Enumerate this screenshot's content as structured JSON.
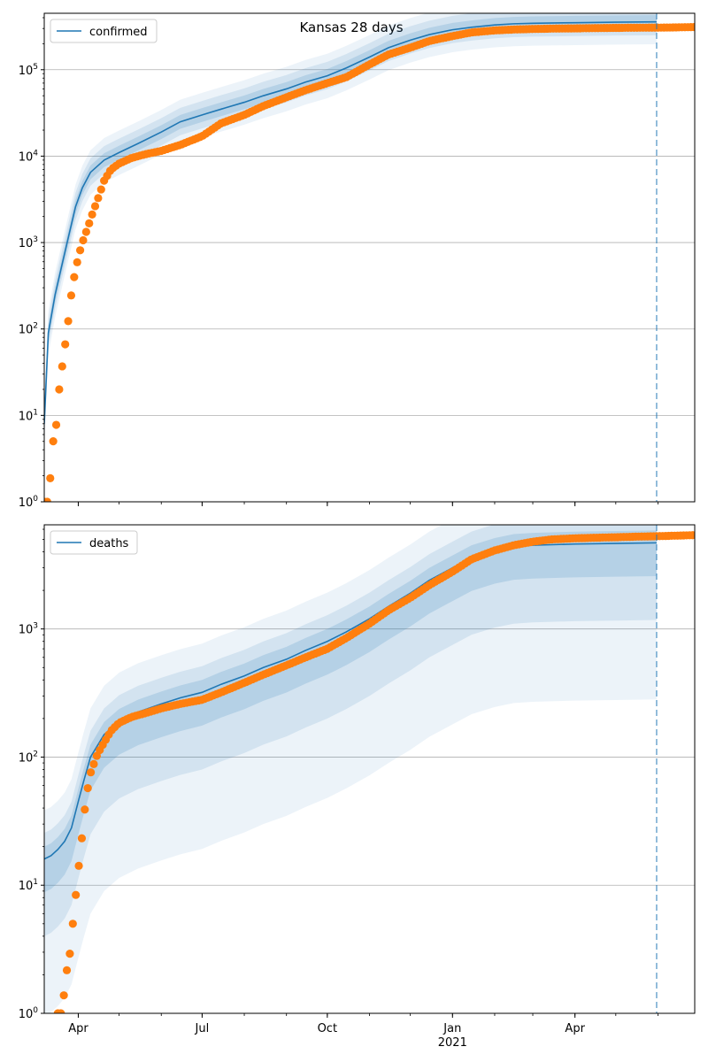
{
  "figure": {
    "title": "Kansas 28 days"
  },
  "chart_data": [
    {
      "type": "line",
      "panel": "confirmed",
      "yscale": "log",
      "ylim": [
        1,
        450000
      ],
      "xlim": [
        "2020-03-07",
        "2021-06-28"
      ],
      "grid": "y-major",
      "legend": {
        "position": "top-left",
        "entries": [
          "confirmed"
        ]
      },
      "x_ticks": [
        {
          "date": "2020-04-01",
          "label": "Apr"
        },
        {
          "date": "2020-07-01",
          "label": "Jul"
        },
        {
          "date": "2020-10-01",
          "label": "Oct"
        },
        {
          "date": "2021-01-01",
          "label": "Jan",
          "sublabel": "2021"
        },
        {
          "date": "2021-04-01",
          "label": "Apr"
        }
      ],
      "y_ticks": [
        {
          "value": 1,
          "label": "10^0"
        },
        {
          "value": 10,
          "label": "10^1"
        },
        {
          "value": 100,
          "label": "10^2"
        },
        {
          "value": 1000,
          "label": "10^3"
        },
        {
          "value": 10000,
          "label": "10^4"
        },
        {
          "value": 100000,
          "label": "10^5"
        }
      ],
      "forecast_start": "2021-05-31",
      "series": [
        {
          "name": "confirmed",
          "kind": "model",
          "color": "#1f77b4",
          "x": [
            "2020-03-07",
            "2020-03-10",
            "2020-03-15",
            "2020-03-20",
            "2020-03-25",
            "2020-03-30",
            "2020-04-04",
            "2020-04-10",
            "2020-04-20",
            "2020-05-01",
            "2020-05-15",
            "2020-06-01",
            "2020-06-15",
            "2020-07-01",
            "2020-07-15",
            "2020-08-01",
            "2020-08-15",
            "2020-09-01",
            "2020-09-15",
            "2020-10-01",
            "2020-10-15",
            "2020-11-01",
            "2020-11-15",
            "2020-12-01",
            "2020-12-15",
            "2021-01-01",
            "2021-01-15",
            "2021-02-01",
            "2021-02-15",
            "2021-03-01",
            "2021-04-01",
            "2021-05-01",
            "2021-05-31"
          ],
          "y": [
            8,
            90,
            250,
            550,
            1200,
            2600,
            4300,
            6500,
            9000,
            11000,
            14000,
            19000,
            25000,
            30000,
            35000,
            42000,
            50000,
            60000,
            72000,
            85000,
            105000,
            140000,
            180000,
            220000,
            255000,
            290000,
            310000,
            330000,
            340000,
            345000,
            350000,
            355000,
            358000
          ]
        },
        {
          "name": "confirmed observed",
          "kind": "points",
          "color": "#ff7f0e",
          "x": [
            "2020-03-07",
            "2020-03-10",
            "2020-03-14",
            "2020-03-16",
            "2020-03-18",
            "2020-03-20",
            "2020-03-22",
            "2020-03-24",
            "2020-03-26",
            "2020-03-28",
            "2020-03-30",
            "2020-04-01",
            "2020-04-04",
            "2020-04-08",
            "2020-04-12",
            "2020-04-16",
            "2020-04-20",
            "2020-04-25",
            "2020-05-01",
            "2020-05-10",
            "2020-05-20",
            "2020-06-01",
            "2020-06-15",
            "2020-07-01",
            "2020-07-15",
            "2020-08-01",
            "2020-08-15",
            "2020-09-01",
            "2020-09-15",
            "2020-10-01",
            "2020-10-15",
            "2020-11-01",
            "2020-11-15",
            "2020-12-01",
            "2020-12-15",
            "2021-01-01",
            "2021-01-15",
            "2021-02-01",
            "2021-02-15",
            "2021-03-01",
            "2021-03-15",
            "2021-04-01",
            "2021-04-15",
            "2021-05-01",
            "2021-05-15",
            "2021-06-01",
            "2021-06-15",
            "2021-06-28"
          ],
          "y": [
            1,
            1,
            6,
            8,
            20,
            35,
            60,
            100,
            200,
            330,
            480,
            680,
            1000,
            1500,
            2300,
            3400,
            5200,
            7000,
            8200,
            9500,
            10500,
            11500,
            13500,
            17000,
            24000,
            30000,
            38000,
            48000,
            58000,
            70000,
            82000,
            115000,
            150000,
            180000,
            215000,
            245000,
            270000,
            285000,
            292000,
            296000,
            299000,
            301000,
            303000,
            305000,
            306000,
            307000,
            309000,
            312000
          ]
        }
      ]
    },
    {
      "type": "line",
      "panel": "deaths",
      "yscale": "log",
      "ylim": [
        1,
        6500
      ],
      "xlim": [
        "2020-03-07",
        "2021-06-28"
      ],
      "grid": "y-major",
      "legend": {
        "position": "top-left",
        "entries": [
          "deaths"
        ]
      },
      "x_ticks": [
        {
          "date": "2020-04-01",
          "label": "Apr"
        },
        {
          "date": "2020-07-01",
          "label": "Jul"
        },
        {
          "date": "2020-10-01",
          "label": "Oct"
        },
        {
          "date": "2021-01-01",
          "label": "Jan",
          "sublabel": "2021"
        },
        {
          "date": "2021-04-01",
          "label": "Apr"
        }
      ],
      "y_ticks": [
        {
          "value": 1,
          "label": "10^0"
        },
        {
          "value": 10,
          "label": "10^1"
        },
        {
          "value": 100,
          "label": "10^2"
        },
        {
          "value": 1000,
          "label": "10^3"
        }
      ],
      "forecast_start": "2021-05-31",
      "series": [
        {
          "name": "deaths",
          "kind": "model",
          "color": "#1f77b4",
          "x": [
            "2020-03-07",
            "2020-03-12",
            "2020-03-17",
            "2020-03-22",
            "2020-03-27",
            "2020-04-01",
            "2020-04-05",
            "2020-04-10",
            "2020-04-20",
            "2020-05-01",
            "2020-05-15",
            "2020-06-01",
            "2020-06-15",
            "2020-07-01",
            "2020-07-15",
            "2020-08-01",
            "2020-08-15",
            "2020-09-01",
            "2020-09-15",
            "2020-10-01",
            "2020-10-15",
            "2020-11-01",
            "2020-11-15",
            "2020-12-01",
            "2020-12-15",
            "2021-01-01",
            "2021-01-15",
            "2021-02-01",
            "2021-02-15",
            "2021-03-01",
            "2021-04-01",
            "2021-05-01",
            "2021-05-31"
          ],
          "y": [
            16,
            17,
            19,
            22,
            28,
            45,
            65,
            100,
            150,
            190,
            225,
            260,
            290,
            320,
            370,
            430,
            500,
            580,
            680,
            800,
            950,
            1200,
            1500,
            1900,
            2400,
            3000,
            3600,
            4100,
            4400,
            4500,
            4600,
            4650,
            4700
          ]
        },
        {
          "name": "deaths observed",
          "kind": "points",
          "color": "#ff7f0e",
          "x": [
            "2020-03-17",
            "2020-03-20",
            "2020-03-23",
            "2020-03-26",
            "2020-03-28",
            "2020-03-30",
            "2020-04-01",
            "2020-04-03",
            "2020-04-05",
            "2020-04-07",
            "2020-04-10",
            "2020-04-15",
            "2020-04-20",
            "2020-04-25",
            "2020-05-01",
            "2020-05-10",
            "2020-05-20",
            "2020-06-01",
            "2020-06-15",
            "2020-07-01",
            "2020-07-15",
            "2020-08-01",
            "2020-08-15",
            "2020-09-01",
            "2020-09-15",
            "2020-10-01",
            "2020-10-15",
            "2020-11-01",
            "2020-11-15",
            "2020-12-01",
            "2020-12-15",
            "2021-01-01",
            "2021-01-15",
            "2021-02-01",
            "2021-02-15",
            "2021-03-01",
            "2021-03-15",
            "2021-04-01",
            "2021-04-15",
            "2021-05-01",
            "2021-05-15",
            "2021-06-01",
            "2021-06-15",
            "2021-06-28"
          ],
          "y": [
            1,
            1,
            2,
            3,
            5,
            8,
            13,
            20,
            33,
            50,
            75,
            105,
            130,
            160,
            185,
            205,
            220,
            240,
            260,
            280,
            320,
            380,
            440,
            520,
            600,
            700,
            850,
            1100,
            1400,
            1750,
            2200,
            2800,
            3500,
            4100,
            4500,
            4800,
            5000,
            5100,
            5150,
            5200,
            5250,
            5300,
            5350,
            5400
          ]
        }
      ]
    }
  ]
}
